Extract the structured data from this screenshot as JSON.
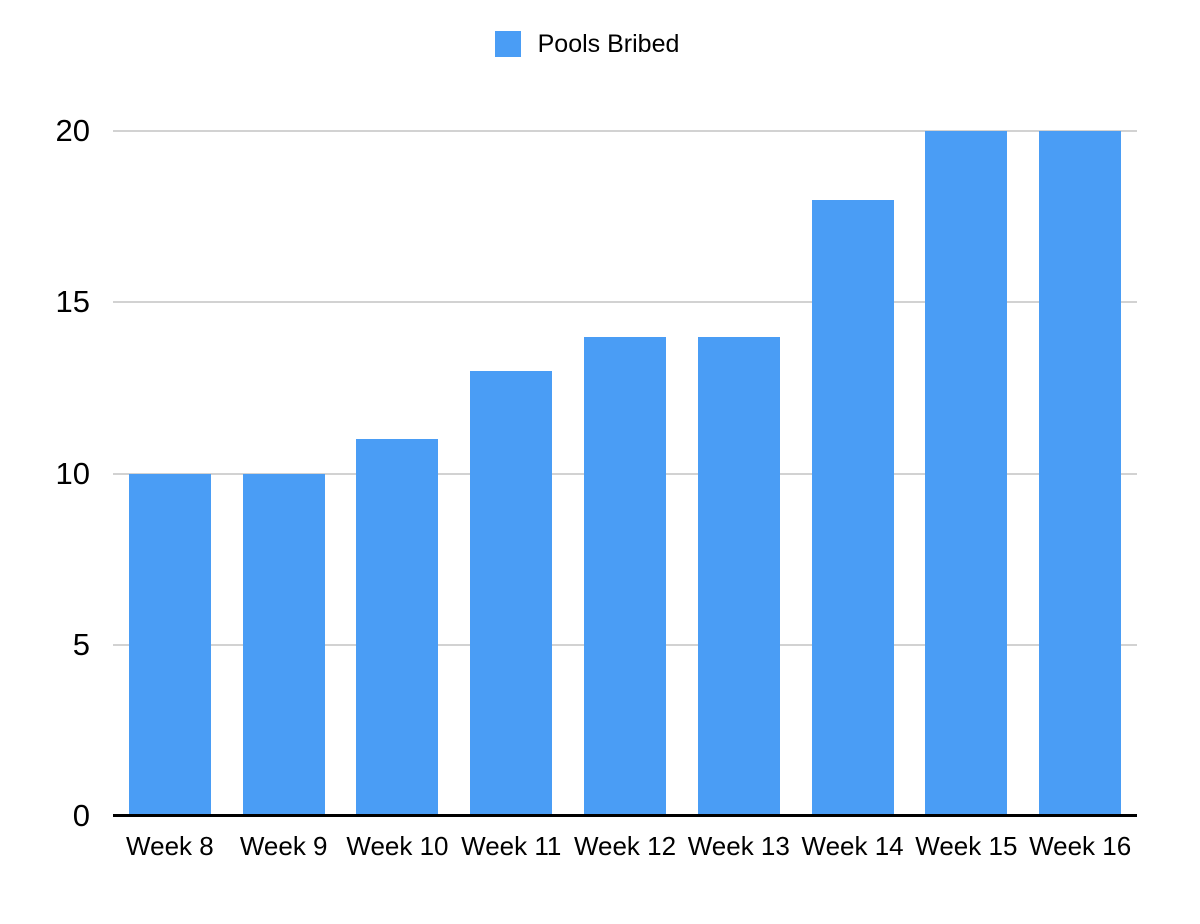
{
  "chart_data": {
    "type": "bar",
    "categories": [
      "Week 8",
      "Week 9",
      "Week 10",
      "Week 11",
      "Week 12",
      "Week 13",
      "Week 14",
      "Week 15",
      "Week 16"
    ],
    "series": [
      {
        "name": "Pools Bribed",
        "values": [
          10,
          10,
          11,
          13,
          14,
          14,
          18,
          20,
          20
        ]
      }
    ],
    "title": "",
    "xlabel": "",
    "ylabel": "",
    "ylim": [
      0,
      20
    ],
    "yticks": [
      0,
      5,
      10,
      15,
      20
    ],
    "grid": true,
    "legend": {
      "label": "Pools Bribed",
      "position": "top-center"
    }
  },
  "colors": {
    "bar": "#4a9df5",
    "gridline": "#d2d2d2",
    "axis": "#000000",
    "text": "#000000",
    "background": "#ffffff"
  }
}
